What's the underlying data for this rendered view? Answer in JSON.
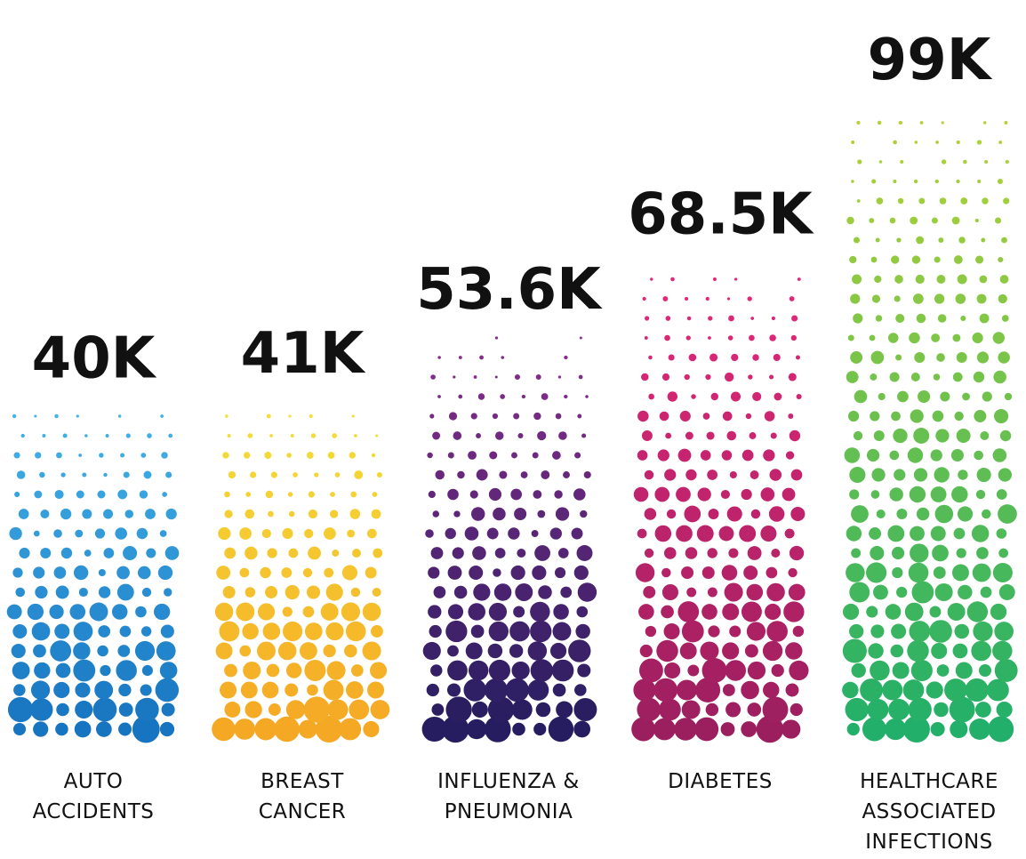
{
  "chart_data": {
    "type": "dotbar",
    "categories": [
      "AUTO\nACCIDENTS",
      "BREAST\nCANCER",
      "INFLUENZA &\nPNEUMONIA",
      "DIABETES",
      "HEALTHCARE\nASSOCIATED\nINFECTIONS"
    ],
    "values": [
      40000,
      41000,
      53600,
      68500,
      99000
    ],
    "value_labels": [
      "40K",
      "41K",
      "53.6K",
      "68.5K",
      "99K"
    ],
    "colors": [
      [
        "#44b4e8",
        "#1672c0"
      ],
      [
        "#f4e23a",
        "#f5a623"
      ],
      [
        "#8a2e8c",
        "#231d5e"
      ],
      [
        "#e6287a",
        "#9a1f5e"
      ],
      [
        "#b5d334",
        "#1fae6a"
      ]
    ],
    "ylim": [
      -25000,
      99000
    ]
  }
}
